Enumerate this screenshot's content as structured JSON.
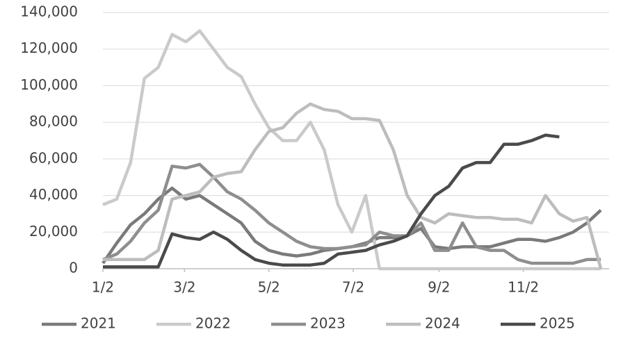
{
  "chart_data": {
    "type": "line",
    "x": [
      2,
      12,
      22,
      32,
      42,
      52,
      62,
      72,
      82,
      92,
      102,
      112,
      122,
      132,
      142,
      152,
      162,
      172,
      182,
      192,
      202,
      212,
      222,
      232,
      242,
      252,
      262,
      272,
      282,
      292,
      302,
      312,
      322,
      332,
      342,
      352,
      362
    ],
    "xlim": [
      2,
      368
    ],
    "xticks": [
      {
        "value": 2,
        "label": "1/2"
      },
      {
        "value": 61,
        "label": "3/2"
      },
      {
        "value": 122,
        "label": "5/2"
      },
      {
        "value": 183,
        "label": "7/2"
      },
      {
        "value": 245,
        "label": "9/2"
      },
      {
        "value": 306,
        "label": "11/2"
      }
    ],
    "ylim": [
      0,
      140000
    ],
    "yticks": [
      0,
      {
        "value": 20000,
        "label": "20,000"
      },
      {
        "value": 40000,
        "label": "40,000"
      },
      {
        "value": 60000,
        "label": "60,000"
      },
      {
        "value": 80000,
        "label": "80,000"
      },
      {
        "value": 100000,
        "label": "100,000"
      },
      {
        "value": 120000,
        "label": "120,000"
      },
      {
        "value": 140000,
        "label": "140,000"
      }
    ],
    "grid": true,
    "legend": "bottom",
    "series": [
      {
        "name": "2021",
        "color": "#7a7a7a",
        "values": [
          3000,
          14000,
          24000,
          30000,
          38000,
          44000,
          38000,
          40000,
          35000,
          30000,
          25000,
          15000,
          10000,
          8000,
          7000,
          8000,
          10000,
          11000,
          12000,
          14000,
          17000,
          17000,
          18000,
          22000,
          12000,
          11000,
          12000,
          12000,
          12000,
          14000,
          16000,
          16000,
          15000,
          17000,
          20000,
          25000,
          32000
        ]
      },
      {
        "name": "2022",
        "color": "#cacaca",
        "values": [
          35000,
          38000,
          58000,
          104000,
          110000,
          128000,
          124000,
          130000,
          120000,
          110000,
          105000,
          90000,
          77000,
          70000,
          70000,
          80000,
          65000,
          35000,
          20000,
          40000,
          0,
          0,
          0,
          0,
          0,
          0,
          0,
          0,
          0,
          0,
          0,
          0,
          0,
          0,
          0,
          0,
          0
        ]
      },
      {
        "name": "2023",
        "color": "#8e8e8e",
        "values": [
          5000,
          8000,
          15000,
          25000,
          32000,
          56000,
          55000,
          57000,
          50000,
          42000,
          38000,
          32000,
          25000,
          20000,
          15000,
          12000,
          11000,
          11000,
          12000,
          13000,
          20000,
          18000,
          18000,
          25000,
          10000,
          10000,
          25000,
          12000,
          10000,
          10000,
          5000,
          3000,
          3000,
          3000,
          3000,
          5000,
          5000
        ]
      },
      {
        "name": "2024",
        "color": "#bdbdbd",
        "values": [
          5000,
          5000,
          5000,
          5000,
          10000,
          38000,
          40000,
          42000,
          50000,
          52000,
          53000,
          65000,
          75000,
          77000,
          85000,
          90000,
          87000,
          86000,
          82000,
          82000,
          81000,
          65000,
          40000,
          28000,
          25000,
          30000,
          29000,
          28000,
          28000,
          27000,
          27000,
          25000,
          40000,
          30000,
          26000,
          28000,
          0
        ]
      },
      {
        "name": "2025",
        "color": "#4a4a4a",
        "values": [
          1000,
          1000,
          1000,
          1000,
          1000,
          19000,
          17000,
          16000,
          20000,
          16000,
          10000,
          5000,
          3000,
          2000,
          2000,
          2000,
          3000,
          8000,
          9000,
          10000,
          13000,
          15000,
          18000,
          30000,
          40000,
          45000,
          55000,
          58000,
          58000,
          68000,
          68000,
          70000,
          73000,
          72000,
          null,
          null,
          null
        ]
      }
    ]
  }
}
